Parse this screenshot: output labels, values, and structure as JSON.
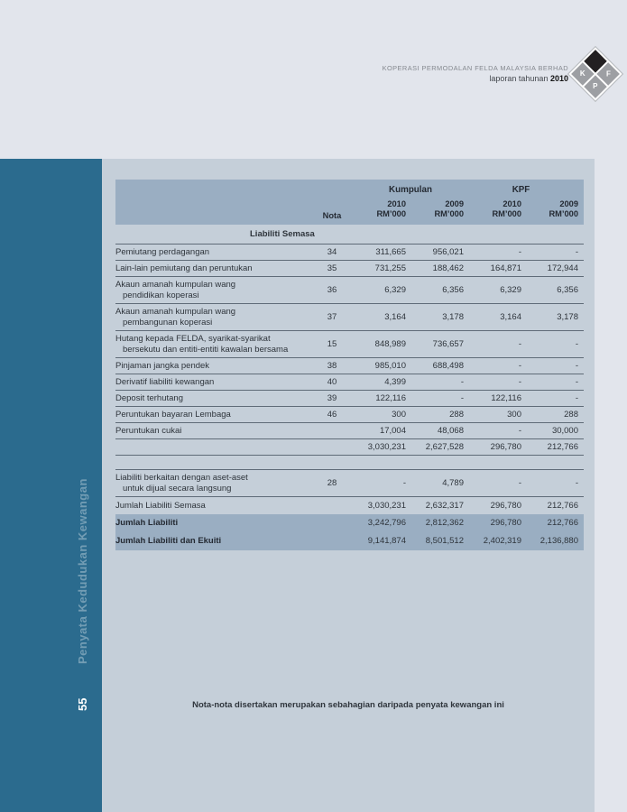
{
  "header": {
    "company": "KOPERASI PERMODALAN FELDA MALAYSIA BERHAD",
    "annual_prefix": "laporan tahunan",
    "annual_year": "2010",
    "logo": {
      "left": "K",
      "right": "F",
      "bottom": "P"
    }
  },
  "sidebar": {
    "vertical_title": "Penyata Kedudukan Kewangan",
    "page_number": "55"
  },
  "table": {
    "column_groups": [
      "Kumpulan",
      "KPF"
    ],
    "nota_header": "Nota",
    "columns": [
      {
        "year": "2010",
        "unit": "RM’000"
      },
      {
        "year": "2009",
        "unit": "RM’000"
      },
      {
        "year": "2010",
        "unit": "RM’000"
      },
      {
        "year": "2009",
        "unit": "RM’000"
      }
    ],
    "section_title": "Liabiliti Semasa",
    "rows": [
      {
        "type": "data",
        "label": "Pemiutang perdagangan",
        "nota": "34",
        "v": [
          "311,665",
          "956,021",
          "-",
          "-"
        ]
      },
      {
        "type": "data",
        "label": "Lain-lain pemiutang dan peruntukan",
        "nota": "35",
        "v": [
          "731,255",
          "188,462",
          "164,871",
          "172,944"
        ]
      },
      {
        "type": "data",
        "label": "Akaun amanah kumpulan wang",
        "label2": "pendidikan koperasi",
        "nota": "36",
        "v": [
          "6,329",
          "6,356",
          "6,329",
          "6,356"
        ]
      },
      {
        "type": "data",
        "label": "Akaun amanah kumpulan wang",
        "label2": "pembangunan koperasi",
        "nota": "37",
        "v": [
          "3,164",
          "3,178",
          "3,164",
          "3,178"
        ]
      },
      {
        "type": "data",
        "label": "Hutang kepada FELDA, syarikat-syarikat",
        "label2": "bersekutu dan entiti-entiti kawalan bersama",
        "nota": "15",
        "v": [
          "848,989",
          "736,657",
          "-",
          "-"
        ]
      },
      {
        "type": "data",
        "label": "Pinjaman jangka pendek",
        "nota": "38",
        "v": [
          "985,010",
          "688,498",
          "-",
          "-"
        ]
      },
      {
        "type": "data",
        "label": "Derivatif liabiliti kewangan",
        "nota": "40",
        "v": [
          "4,399",
          "-",
          "-",
          "-"
        ]
      },
      {
        "type": "data",
        "label": "Deposit terhutang",
        "nota": "39",
        "v": [
          "122,116",
          "-",
          "122,116",
          "-"
        ]
      },
      {
        "type": "data",
        "label": "Peruntukan bayaran Lembaga",
        "nota": "46",
        "v": [
          "300",
          "288",
          "300",
          "288"
        ]
      },
      {
        "type": "data",
        "label": "Peruntukan cukai",
        "nota": "",
        "v": [
          "17,004",
          "48,068",
          "-",
          "30,000"
        ]
      },
      {
        "type": "data",
        "label": "",
        "nota": "",
        "v": [
          "3,030,231",
          "2,627,528",
          "296,780",
          "212,766"
        ]
      },
      {
        "type": "spacer"
      },
      {
        "type": "isolated",
        "label": "Liabiliti berkaitan dengan aset-aset",
        "label2": "untuk dijual secara langsung",
        "nota": "28",
        "v": [
          "-",
          "4,789",
          "-",
          "-"
        ]
      },
      {
        "type": "total-light",
        "label": "Jumlah Liabiliti Semasa",
        "nota": "",
        "v": [
          "3,030,231",
          "2,632,317",
          "296,780",
          "212,766"
        ]
      },
      {
        "type": "total-dark",
        "label": "Jumlah Liabiliti",
        "nota": "",
        "v": [
          "3,242,796",
          "2,812,362",
          "296,780",
          "212,766"
        ]
      },
      {
        "type": "total-dark",
        "label": "Jumlah Liabiliti dan Ekuiti",
        "nota": "",
        "v": [
          "9,141,874",
          "8,501,512",
          "2,402,319",
          "2,136,880"
        ]
      }
    ]
  },
  "footer_note": "Nota-nota disertakan merupakan sebahagian daripada penyata kewangan ini",
  "colors": {
    "page_bg": "#e2e5ec",
    "panel_bg": "#c5cfd9",
    "band_bg": "#9aaec2",
    "sidebar_bg": "#2b6b8e",
    "line": "#5f6b78",
    "ink": "#2e343b"
  }
}
